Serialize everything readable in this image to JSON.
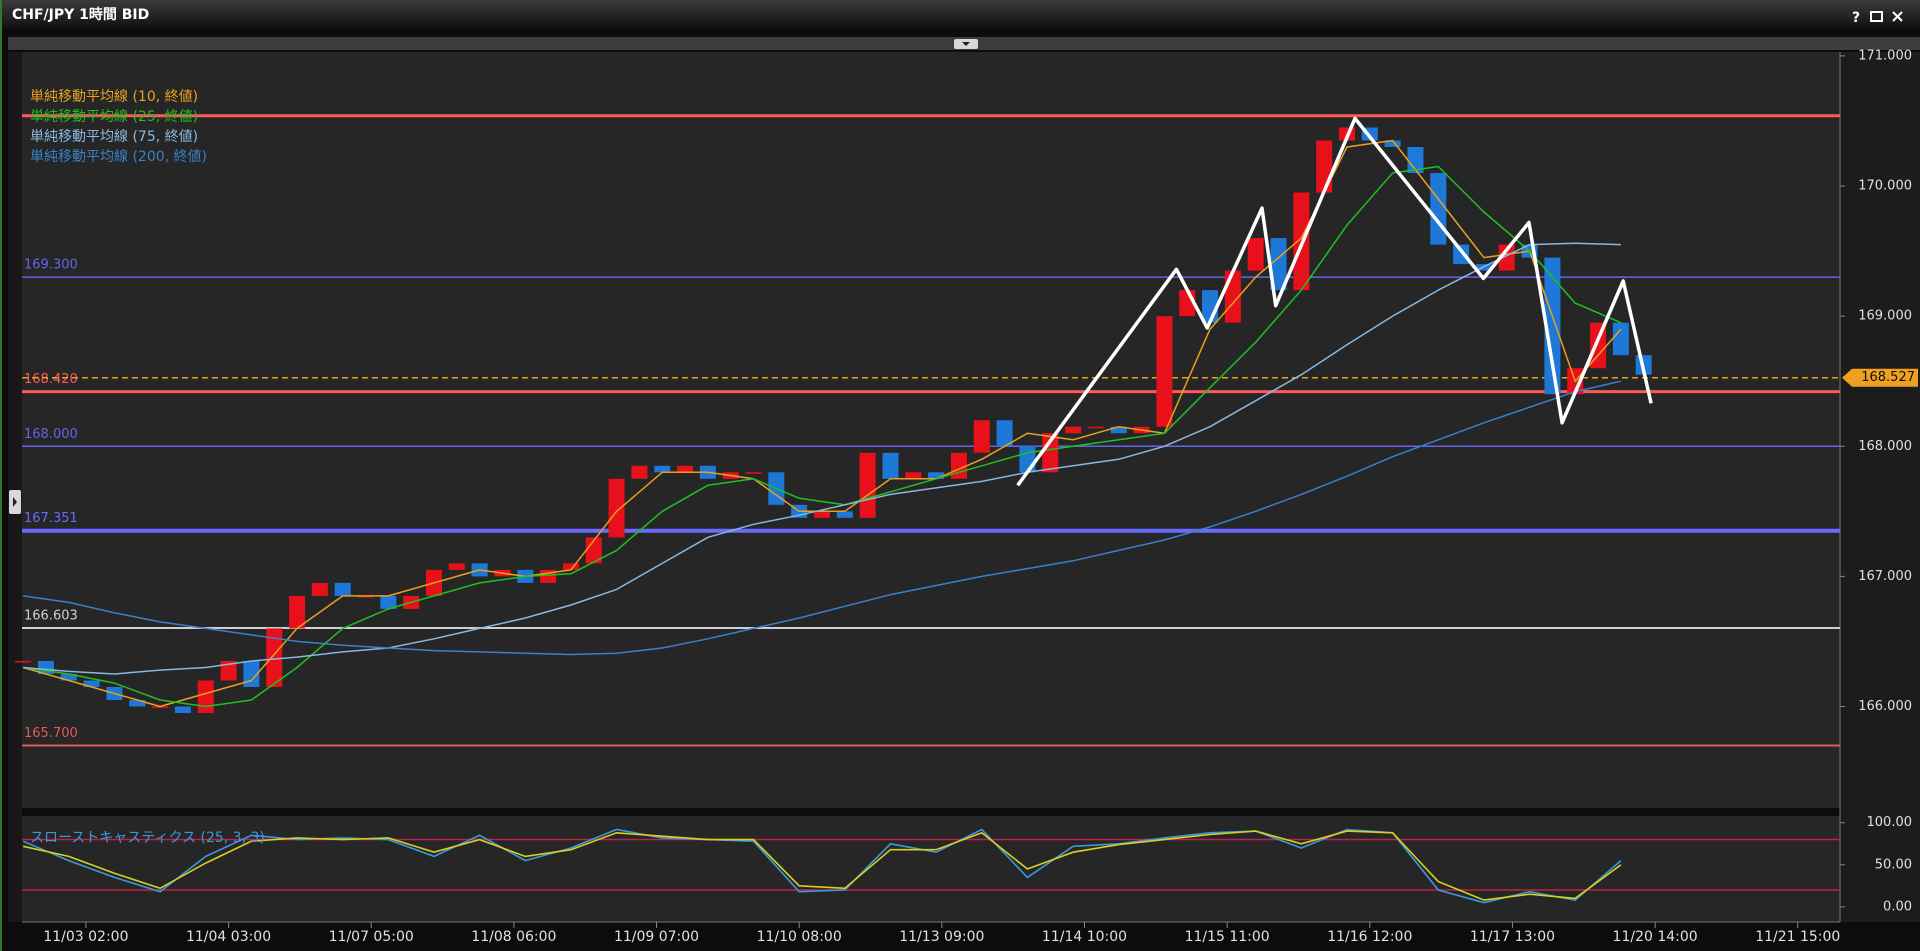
{
  "window": {
    "title": "CHF/JPY 1時間 BID",
    "help": "?"
  },
  "chart_data": [
    {
      "type": "candlestick",
      "xlim": [
        -0.2,
        318.4
      ],
      "xticks": [
        {
          "value": 11,
          "label": "11/03 02:00"
        },
        {
          "value": 36,
          "label": "11/04 03:00"
        },
        {
          "value": 61,
          "label": "11/07 05:00"
        },
        {
          "value": 86,
          "label": "11/08 06:00"
        },
        {
          "value": 111,
          "label": "11/09 07:00"
        },
        {
          "value": 136,
          "label": "11/10 08:00"
        },
        {
          "value": 161,
          "label": "11/13 09:00"
        },
        {
          "value": 186,
          "label": "11/14 10:00"
        },
        {
          "value": 211,
          "label": "11/15 11:00"
        },
        {
          "value": 236,
          "label": "11/16 12:00"
        },
        {
          "value": 261,
          "label": "11/17 13:00"
        },
        {
          "value": 286,
          "label": "11/20 14:00"
        },
        {
          "value": 311,
          "label": "11/21 15:00"
        }
      ],
      "ylim": [
        165.22,
        171.03
      ],
      "yticks": [
        {
          "value": 166,
          "label": "166.000"
        },
        {
          "value": 167,
          "label": "167.000"
        },
        {
          "value": 168,
          "label": "168.000"
        },
        {
          "value": 169,
          "label": "169.000"
        },
        {
          "value": 170,
          "label": "170.000"
        },
        {
          "value": 171,
          "label": "171.000"
        }
      ],
      "series": [
        {
          "kind": "candle",
          "up_color": "#e8101a",
          "down_color": "#1e78d8",
          "x": [
            0,
            4,
            8,
            12,
            16,
            20,
            24,
            28,
            32,
            36,
            40,
            44,
            48,
            52,
            56,
            60,
            64,
            68,
            72,
            76,
            80,
            84,
            88,
            92,
            96,
            100,
            104,
            108,
            112,
            116,
            120,
            124,
            128,
            132,
            136,
            140,
            144,
            148,
            152,
            156,
            160,
            164,
            168,
            172,
            176,
            180,
            184,
            188,
            192,
            196,
            200,
            204,
            208,
            212,
            216,
            220,
            224,
            228,
            232,
            236,
            240,
            244,
            248,
            252,
            256,
            260,
            264,
            268,
            272,
            276,
            280,
            284
          ],
          "values": [
            166.35,
            166.25,
            166.2,
            166.15,
            166.05,
            166.0,
            166.0,
            165.95,
            166.2,
            166.35,
            166.15,
            166.6,
            166.85,
            166.95,
            166.85,
            166.85,
            166.75,
            166.85,
            167.05,
            167.1,
            167.0,
            167.05,
            166.95,
            167.05,
            167.1,
            167.3,
            167.75,
            167.85,
            167.8,
            167.85,
            167.75,
            167.8,
            167.8,
            167.55,
            167.45,
            167.5,
            167.45,
            167.95,
            167.75,
            167.8,
            167.75,
            167.95,
            168.2,
            168.0,
            167.8,
            168.1,
            168.15,
            168.15,
            168.1,
            168.15,
            169.0,
            169.2,
            168.95,
            169.35,
            169.6,
            169.2,
            169.95,
            170.35,
            170.45,
            170.35,
            170.3,
            170.1,
            169.55,
            169.4,
            169.35,
            169.55,
            169.45,
            168.4,
            168.6,
            168.95,
            168.7,
            168.55
          ]
        },
        {
          "kind": "line",
          "name": "単純移動平均線 (10, 終値)",
          "color": "#e8a020",
          "x": [
            0,
            8,
            16,
            24,
            32,
            40,
            48,
            56,
            64,
            72,
            80,
            88,
            96,
            104,
            112,
            120,
            128,
            136,
            144,
            152,
            160,
            168,
            176,
            184,
            192,
            200,
            208,
            216,
            224,
            232,
            240,
            248,
            256,
            264,
            272,
            280
          ],
          "values": [
            166.3,
            166.2,
            166.1,
            166.0,
            166.1,
            166.2,
            166.6,
            166.85,
            166.85,
            166.95,
            167.05,
            167.0,
            167.05,
            167.5,
            167.8,
            167.8,
            167.75,
            167.5,
            167.5,
            167.75,
            167.75,
            167.9,
            168.1,
            168.05,
            168.15,
            168.1,
            168.9,
            169.3,
            169.6,
            170.3,
            170.35,
            169.9,
            169.45,
            169.5,
            168.5,
            168.9
          ]
        },
        {
          "kind": "line",
          "name": "単純移動平均線 (25, 終値)",
          "color": "#20c020",
          "x": [
            0,
            8,
            16,
            24,
            32,
            40,
            48,
            56,
            64,
            72,
            80,
            88,
            96,
            104,
            112,
            120,
            128,
            136,
            144,
            152,
            160,
            168,
            176,
            184,
            192,
            200,
            208,
            216,
            224,
            232,
            240,
            248,
            256,
            264,
            272,
            280
          ],
          "values": [
            166.3,
            166.25,
            166.18,
            166.05,
            166.0,
            166.05,
            166.3,
            166.6,
            166.75,
            166.85,
            166.95,
            167.0,
            167.02,
            167.2,
            167.5,
            167.7,
            167.75,
            167.6,
            167.55,
            167.65,
            167.75,
            167.85,
            167.95,
            168.0,
            168.05,
            168.1,
            168.45,
            168.8,
            169.2,
            169.7,
            170.1,
            170.15,
            169.8,
            169.5,
            169.1,
            168.95
          ]
        },
        {
          "kind": "line",
          "name": "単純移動平均線 (75, 終値)",
          "color": "#88b8e0",
          "x": [
            0,
            8,
            16,
            24,
            32,
            40,
            48,
            56,
            64,
            72,
            80,
            88,
            96,
            104,
            112,
            120,
            128,
            136,
            144,
            152,
            160,
            168,
            176,
            184,
            192,
            200,
            208,
            216,
            224,
            232,
            240,
            248,
            256,
            264,
            272,
            280
          ],
          "values": [
            166.3,
            166.27,
            166.25,
            166.28,
            166.3,
            166.35,
            166.38,
            166.42,
            166.45,
            166.52,
            166.6,
            166.68,
            166.78,
            166.9,
            167.1,
            167.3,
            167.4,
            167.47,
            167.55,
            167.63,
            167.68,
            167.73,
            167.8,
            167.85,
            167.9,
            168.0,
            168.15,
            168.35,
            168.55,
            168.78,
            169.0,
            169.2,
            169.38,
            169.55,
            169.56,
            169.55
          ]
        },
        {
          "kind": "line",
          "name": "単純移動平均線 (200, 終値)",
          "color": "#3a80c8",
          "x": [
            0,
            8,
            16,
            24,
            32,
            40,
            48,
            56,
            64,
            72,
            80,
            88,
            96,
            104,
            112,
            120,
            128,
            136,
            144,
            152,
            160,
            168,
            176,
            184,
            192,
            200,
            208,
            216,
            224,
            232,
            240,
            248,
            256,
            264,
            272,
            280
          ],
          "values": [
            166.85,
            166.8,
            166.72,
            166.65,
            166.6,
            166.55,
            166.5,
            166.47,
            166.45,
            166.43,
            166.42,
            166.41,
            166.4,
            166.41,
            166.45,
            166.52,
            166.6,
            166.68,
            166.77,
            166.86,
            166.93,
            167.0,
            167.06,
            167.12,
            167.2,
            167.28,
            167.38,
            167.5,
            167.63,
            167.77,
            167.92,
            168.05,
            168.18,
            168.3,
            168.42,
            168.5
          ]
        },
        {
          "kind": "zigzag",
          "color": "#ffffff",
          "x": [
            174.3,
            202.1,
            207.5,
            217.1,
            219.5,
            233.4,
            255.9,
            263.9,
            269.7,
            280.4,
            285.3
          ],
          "values": [
            167.7,
            169.36,
            168.91,
            169.83,
            169.08,
            170.52,
            169.29,
            169.72,
            168.18,
            169.27,
            168.33
          ]
        }
      ],
      "levels": [
        {
          "value": 170.54,
          "color": "#ff5a5a",
          "width": 3
        },
        {
          "value": 169.3,
          "label": "169.300",
          "color": "#6464e8",
          "width": 1.5
        },
        {
          "value": 168.42,
          "label": "168.420",
          "color": "#ff5a5a",
          "width": 3
        },
        {
          "value": 168.0,
          "label": "168.000",
          "color": "#6464e8",
          "width": 1.5
        },
        {
          "value": 167.351,
          "label": "167.351",
          "color": "#6a6aff",
          "width": 4
        },
        {
          "value": 166.603,
          "label": "166.603",
          "color": "#d0d0d0",
          "width": 2
        },
        {
          "value": 165.7,
          "label": "165.700",
          "color": "#e05a5a",
          "width": 2
        }
      ],
      "last_price": {
        "value": 168.527,
        "label": "168.527",
        "color": "#f0a020"
      }
    },
    {
      "type": "line",
      "title": "スローストキャスティクス (25, 3, 3)",
      "ylim": [
        -18,
        108
      ],
      "yticks": [
        {
          "value": 0,
          "label": "0.00"
        },
        {
          "value": 50,
          "label": "50.00"
        },
        {
          "value": 100,
          "label": "100.00"
        }
      ],
      "levels": [
        80,
        20
      ],
      "level_color": "#c0204a",
      "series": [
        {
          "color": "#3a9ad9",
          "x": [
            0,
            8,
            16,
            24,
            32,
            40,
            48,
            56,
            64,
            72,
            80,
            88,
            96,
            104,
            112,
            120,
            128,
            136,
            144,
            152,
            160,
            168,
            176,
            184,
            192,
            200,
            208,
            216,
            224,
            232,
            240,
            248,
            256,
            264,
            272,
            280
          ],
          "values": [
            78,
            55,
            35,
            18,
            60,
            85,
            80,
            82,
            80,
            60,
            85,
            55,
            70,
            92,
            82,
            80,
            78,
            18,
            20,
            75,
            65,
            92,
            35,
            72,
            75,
            82,
            88,
            90,
            70,
            92,
            88,
            20,
            5,
            18,
            8,
            55
          ]
        },
        {
          "color": "#d8d020",
          "x": [
            0,
            8,
            16,
            24,
            32,
            40,
            48,
            56,
            64,
            72,
            80,
            88,
            96,
            104,
            112,
            120,
            128,
            136,
            144,
            152,
            160,
            168,
            176,
            184,
            192,
            200,
            208,
            216,
            224,
            232,
            240,
            248,
            256,
            264,
            272,
            280
          ],
          "values": [
            72,
            60,
            40,
            22,
            52,
            78,
            82,
            80,
            82,
            65,
            80,
            60,
            68,
            88,
            84,
            80,
            80,
            25,
            22,
            68,
            68,
            88,
            45,
            65,
            74,
            80,
            86,
            90,
            75,
            90,
            88,
            30,
            8,
            15,
            10,
            50
          ]
        }
      ]
    }
  ]
}
